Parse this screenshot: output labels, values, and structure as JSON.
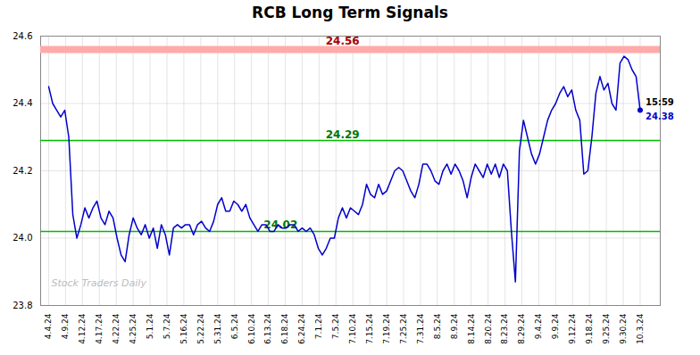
{
  "chart_data": {
    "type": "line",
    "title": "RCB Long Term Signals",
    "x": [
      0,
      1,
      2,
      3,
      4,
      5,
      6,
      7,
      8,
      9,
      10,
      11,
      12,
      13,
      14,
      15,
      16,
      17,
      18,
      19,
      20,
      21,
      22,
      23,
      24,
      25,
      26,
      27,
      28,
      29,
      30,
      31,
      32,
      33,
      34,
      35,
      36,
      37,
      38,
      39,
      40,
      41,
      42,
      43,
      44,
      45,
      46,
      47,
      48,
      49,
      50,
      51,
      52,
      53,
      54,
      55,
      56,
      57,
      58,
      59,
      60,
      61,
      62,
      63,
      64,
      65,
      66,
      67,
      68,
      69,
      70,
      71,
      72,
      73,
      74,
      75,
      76,
      77,
      78,
      79,
      80,
      81,
      82,
      83,
      84,
      85,
      86,
      87,
      88,
      89,
      90,
      91,
      92,
      93,
      94,
      95,
      96,
      97,
      98,
      99,
      100,
      101,
      102,
      103,
      104,
      105,
      106,
      107,
      108,
      109,
      110,
      111,
      112,
      113,
      114,
      115,
      116,
      117,
      118,
      119,
      120,
      121,
      122,
      123,
      124,
      125,
      126,
      127,
      128,
      129,
      130,
      131,
      132,
      133,
      134,
      135,
      136,
      137,
      138,
      139,
      140,
      141,
      142,
      143,
      144,
      145,
      146,
      147
    ],
    "series": [
      {
        "color": "#0000cc",
        "values": [
          24.45,
          24.4,
          24.38,
          24.36,
          24.38,
          24.3,
          24.07,
          24.0,
          24.04,
          24.09,
          24.06,
          24.09,
          24.11,
          24.06,
          24.04,
          24.08,
          24.06,
          24.0,
          23.95,
          23.93,
          24.01,
          24.06,
          24.03,
          24.01,
          24.04,
          24.0,
          24.03,
          23.97,
          24.04,
          24.01,
          23.95,
          24.03,
          24.04,
          24.03,
          24.04,
          24.04,
          24.01,
          24.04,
          24.05,
          24.03,
          24.02,
          24.05,
          24.1,
          24.12,
          24.08,
          24.08,
          24.11,
          24.1,
          24.08,
          24.1,
          24.06,
          24.04,
          24.02,
          24.04,
          24.04,
          24.02,
          24.02,
          24.04,
          24.03,
          24.03,
          24.04,
          24.04,
          24.02,
          24.03,
          24.02,
          24.03,
          24.01,
          23.97,
          23.95,
          23.97,
          24.0,
          24.0,
          24.06,
          24.09,
          24.06,
          24.09,
          24.08,
          24.07,
          24.1,
          24.16,
          24.13,
          24.12,
          24.16,
          24.13,
          24.14,
          24.17,
          24.2,
          24.21,
          24.2,
          24.17,
          24.14,
          24.12,
          24.16,
          24.22,
          24.22,
          24.2,
          24.17,
          24.16,
          24.2,
          24.22,
          24.19,
          24.22,
          24.2,
          24.17,
          24.12,
          24.18,
          24.22,
          24.2,
          24.18,
          24.22,
          24.19,
          24.22,
          24.18,
          24.22,
          24.2,
          24.02,
          23.87,
          24.26,
          24.35,
          24.3,
          24.25,
          24.22,
          24.25,
          24.3,
          24.35,
          24.38,
          24.4,
          24.43,
          24.45,
          24.42,
          24.44,
          24.38,
          24.35,
          24.19,
          24.2,
          24.3,
          24.43,
          24.48,
          24.44,
          24.46,
          24.4,
          24.38,
          24.52,
          24.54,
          24.53,
          24.5,
          24.48,
          24.38
        ]
      }
    ],
    "xlim": [
      -2,
      152
    ],
    "xticks": [
      {
        "value": 0,
        "label": "4.4.24"
      },
      {
        "value": 4.2,
        "label": "4.9.24"
      },
      {
        "value": 8.4,
        "label": "4.12.24"
      },
      {
        "value": 12.6,
        "label": "4.17.24"
      },
      {
        "value": 16.8,
        "label": "4.22.24"
      },
      {
        "value": 21,
        "label": "4.25.24"
      },
      {
        "value": 25.2,
        "label": "5.1.24"
      },
      {
        "value": 29.4,
        "label": "5.7.24"
      },
      {
        "value": 33.6,
        "label": "5.16.24"
      },
      {
        "value": 37.8,
        "label": "5.22.24"
      },
      {
        "value": 42,
        "label": "5.31.24"
      },
      {
        "value": 46.2,
        "label": "6.5.24"
      },
      {
        "value": 50.4,
        "label": "6.10.24"
      },
      {
        "value": 54.6,
        "label": "6.13.24"
      },
      {
        "value": 58.8,
        "label": "6.18.24"
      },
      {
        "value": 63,
        "label": "6.24.24"
      },
      {
        "value": 67.2,
        "label": "7.1.24"
      },
      {
        "value": 71.4,
        "label": "7.5.24"
      },
      {
        "value": 75.6,
        "label": "7.10.24"
      },
      {
        "value": 79.8,
        "label": "7.15.24"
      },
      {
        "value": 84,
        "label": "7.19.24"
      },
      {
        "value": 88.2,
        "label": "7.25.24"
      },
      {
        "value": 92.4,
        "label": "7.31.24"
      },
      {
        "value": 96.6,
        "label": "8.5.24"
      },
      {
        "value": 100.8,
        "label": "8.9.24"
      },
      {
        "value": 105,
        "label": "8.14.24"
      },
      {
        "value": 109.2,
        "label": "8.20.24"
      },
      {
        "value": 113.4,
        "label": "8.23.24"
      },
      {
        "value": 117.6,
        "label": "8.29.24"
      },
      {
        "value": 121.8,
        "label": "9.4.24"
      },
      {
        "value": 126,
        "label": "9.9.24"
      },
      {
        "value": 130.2,
        "label": "9.12.24"
      },
      {
        "value": 134.4,
        "label": "9.18.24"
      },
      {
        "value": 138.6,
        "label": "9.25.24"
      },
      {
        "value": 142.8,
        "label": "9.30.24"
      },
      {
        "value": 147,
        "label": "10.3.24"
      }
    ],
    "ylim": [
      23.8,
      24.6
    ],
    "yticks": [
      23.8,
      {
        "value": 24.0,
        "label": "24.0"
      },
      24.2,
      24.4,
      24.6
    ],
    "grid": true,
    "hlines": [
      {
        "value": 24.56,
        "color": "#ffaaaa",
        "line_style": "band",
        "label": "24.56",
        "label_color": "#aa0000"
      },
      {
        "value": 24.29,
        "color": "#00bb00",
        "line_style": "solid",
        "label": "24.29",
        "label_color": "#007700"
      },
      {
        "value": 24.02,
        "color": "#00bb00",
        "line_style": "solid",
        "label": "24.02",
        "label_color": "#007700"
      }
    ],
    "end_labels": {
      "time": "15:59",
      "price": "24.38",
      "color": "#0000cc"
    },
    "watermark": {
      "text": "Stock Traders Daily",
      "color": "#bbbbbb"
    }
  }
}
